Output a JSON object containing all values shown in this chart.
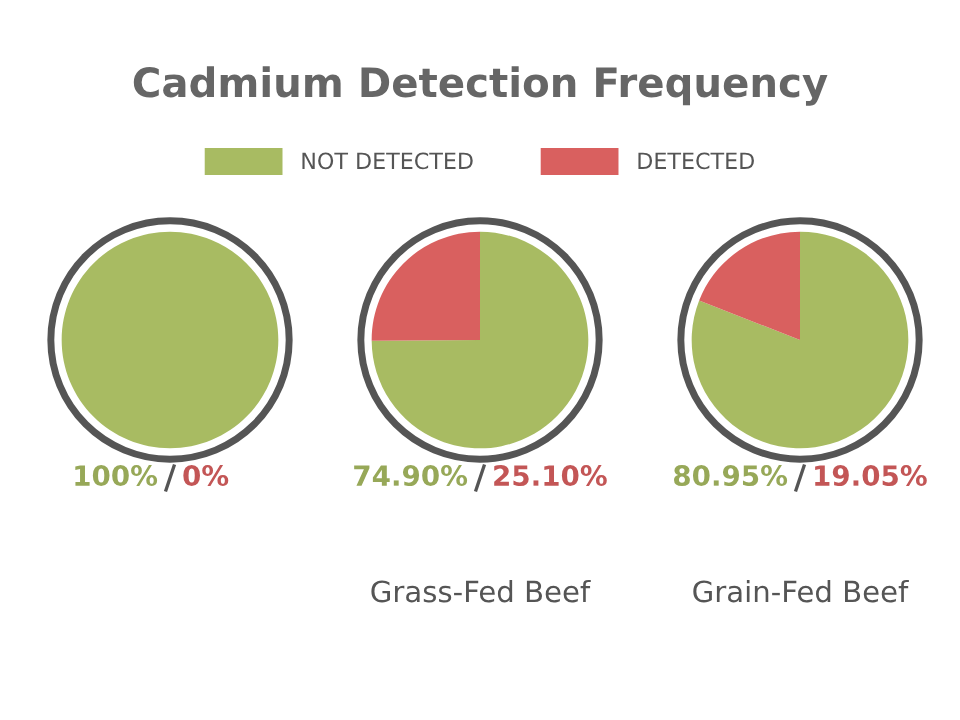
{
  "chart_data": [
    {
      "type": "pie",
      "title": "Cadmium Detection Frequency",
      "legend": "top",
      "categories": [
        "NOT DETECTED",
        "DETECTED"
      ],
      "values": [
        100,
        0
      ],
      "colors": [
        "#a8bb62",
        "#d9605f"
      ],
      "annotations": [
        "100%",
        "0%"
      ]
    },
    {
      "type": "pie",
      "xlabel": "Grass-Fed Beef",
      "values": [
        74.9,
        25.1
      ],
      "colors": [
        "#a8bb62",
        "#d9605f"
      ],
      "annotations": [
        "74.90%",
        "25.10%"
      ]
    },
    {
      "type": "pie",
      "xlabel": "Grain-Fed Beef",
      "values": [
        80.95,
        19.05
      ],
      "colors": [
        "#a8bb62",
        "#d9605f"
      ],
      "annotations": [
        "80.95%",
        "19.05%"
      ]
    }
  ]
}
